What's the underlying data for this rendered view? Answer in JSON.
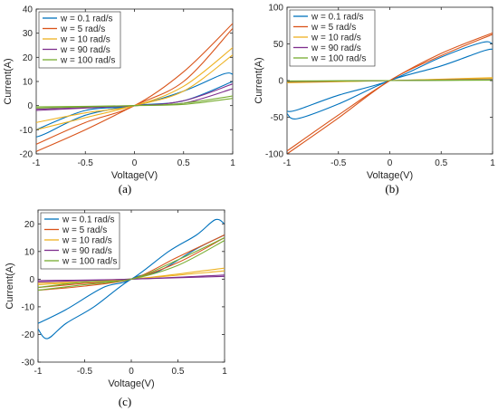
{
  "chart_data": [
    {
      "type": "line",
      "caption": "(a)",
      "xlabel": "Voltage(V)",
      "ylabel": "Current(A)",
      "xlim": [
        -1,
        1
      ],
      "ylim": [
        -20,
        40
      ],
      "xticks": [
        -1,
        -0.5,
        0,
        0.5,
        1
      ],
      "xtick_labels": [
        "-1",
        "-0.5",
        "0",
        "0.5",
        "1"
      ],
      "yticks": [
        -20,
        -10,
        0,
        10,
        20,
        30,
        40
      ],
      "ytick_labels": [
        "-20",
        "-10",
        "0",
        "10",
        "20",
        "30",
        "40"
      ],
      "grid": false,
      "legend_position": "top-left",
      "series": [
        {
          "name": "w = 0.1 rad/s",
          "color": "#0072BD",
          "upper": [
            [
              -1,
              -10
            ],
            [
              -0.5,
              -2
            ],
            [
              0,
              0
            ],
            [
              0.5,
              6
            ],
            [
              0.9,
              13
            ],
            [
              1,
              13
            ]
          ],
          "lower": [
            [
              -1,
              -13
            ],
            [
              -0.9,
              -11.5
            ],
            [
              -0.5,
              -4
            ],
            [
              0,
              0
            ],
            [
              0.5,
              2
            ],
            [
              1,
              10
            ]
          ]
        },
        {
          "name": "w = 5 rad/s",
          "color": "#D95319",
          "upper": [
            [
              -1,
              -16
            ],
            [
              -0.5,
              -7
            ],
            [
              0,
              0
            ],
            [
              0.5,
              14
            ],
            [
              1,
              34
            ]
          ],
          "lower": [
            [
              -1,
              -19
            ],
            [
              -0.5,
              -10
            ],
            [
              0,
              0
            ],
            [
              0.5,
              10
            ],
            [
              1,
              32
            ]
          ]
        },
        {
          "name": "w = 10 rad/s",
          "color": "#EDB120",
          "upper": [
            [
              -1,
              -7
            ],
            [
              -0.5,
              -3
            ],
            [
              0,
              0
            ],
            [
              0.5,
              8
            ],
            [
              1,
              24
            ]
          ],
          "lower": [
            [
              -1,
              -10
            ],
            [
              -0.5,
              -5
            ],
            [
              0,
              0
            ],
            [
              0.5,
              6
            ],
            [
              1,
              21
            ]
          ]
        },
        {
          "name": "w = 90 rad/s",
          "color": "#7E2F8E",
          "upper": [
            [
              -1,
              -1.5
            ],
            [
              0,
              0
            ],
            [
              0.5,
              2
            ],
            [
              1,
              9
            ]
          ],
          "lower": [
            [
              -1,
              -2
            ],
            [
              0,
              0
            ],
            [
              0.5,
              1
            ],
            [
              1,
              7
            ]
          ]
        },
        {
          "name": "w = 100 rad/s",
          "color": "#77AC30",
          "upper": [
            [
              -1,
              -0.5
            ],
            [
              0,
              0
            ],
            [
              0.5,
              1
            ],
            [
              1,
              4
            ]
          ],
          "lower": [
            [
              -1,
              -1
            ],
            [
              0,
              0
            ],
            [
              0.5,
              0.5
            ],
            [
              1,
              3
            ]
          ]
        }
      ]
    },
    {
      "type": "line",
      "caption": "(b)",
      "xlabel": "Voltage(V)",
      "ylabel": "Current(A)",
      "xlim": [
        -1,
        1
      ],
      "ylim": [
        -100,
        100
      ],
      "xticks": [
        -1,
        -0.5,
        0,
        0.5,
        1
      ],
      "xtick_labels": [
        "-1",
        "-0.5",
        "0",
        "0.5",
        "1"
      ],
      "yticks": [
        -100,
        -50,
        0,
        50,
        100
      ],
      "ytick_labels": [
        "-100",
        "-50",
        "0",
        "50",
        "100"
      ],
      "grid": false,
      "legend_position": "top-left",
      "series": [
        {
          "name": "w = 0.1 rad/s",
          "color": "#0072BD",
          "upper": [
            [
              -1,
              -42
            ],
            [
              -0.9,
              -40
            ],
            [
              -0.5,
              -20
            ],
            [
              0,
              0
            ],
            [
              0.5,
              32
            ],
            [
              0.9,
              52
            ],
            [
              1,
              50
            ]
          ],
          "lower": [
            [
              -1,
              -45
            ],
            [
              -0.9,
              -52
            ],
            [
              -0.5,
              -32
            ],
            [
              0,
              0
            ],
            [
              0.5,
              20
            ],
            [
              0.9,
              40
            ],
            [
              1,
              43
            ]
          ]
        },
        {
          "name": "w = 5 rad/s",
          "color": "#D95319",
          "upper": [
            [
              -1,
              -96
            ],
            [
              -0.5,
              -47
            ],
            [
              0,
              0
            ],
            [
              0.5,
              37
            ],
            [
              1,
              65
            ]
          ],
          "lower": [
            [
              -1,
              -100
            ],
            [
              -0.5,
              -51
            ],
            [
              0,
              0
            ],
            [
              0.5,
              34
            ],
            [
              1,
              63
            ]
          ]
        },
        {
          "name": "w = 10 rad/s",
          "color": "#EDB120",
          "upper": [
            [
              -1,
              -2
            ],
            [
              0,
              0
            ],
            [
              1,
              4
            ]
          ],
          "lower": [
            [
              -1,
              -3
            ],
            [
              0,
              0
            ],
            [
              1,
              3
            ]
          ]
        },
        {
          "name": "w = 90 rad/s",
          "color": "#7E2F8E",
          "upper": [
            [
              -1,
              -1
            ],
            [
              0,
              0
            ],
            [
              1,
              1.5
            ]
          ],
          "lower": [
            [
              -1,
              -1.5
            ],
            [
              0,
              0
            ],
            [
              1,
              1
            ]
          ]
        },
        {
          "name": "w = 100 rad/s",
          "color": "#77AC30",
          "upper": [
            [
              -1,
              -0.5
            ],
            [
              0,
              0
            ],
            [
              1,
              1
            ]
          ],
          "lower": [
            [
              -1,
              -1
            ],
            [
              0,
              0
            ],
            [
              1,
              0.5
            ]
          ]
        }
      ]
    },
    {
      "type": "line",
      "caption": "(c)",
      "xlabel": "Voltage(V)",
      "ylabel": "Current(A)",
      "xlim": [
        -1,
        1
      ],
      "ylim": [
        -30,
        25
      ],
      "xticks": [
        -1,
        -0.5,
        0,
        0.5,
        1
      ],
      "xtick_labels": [
        "-1",
        "-0.5",
        "0",
        "0.5",
        "1"
      ],
      "yticks": [
        -30,
        -20,
        -10,
        0,
        10,
        20
      ],
      "ytick_labels": [
        "-30",
        "-20",
        "-10",
        "0",
        "10",
        "20"
      ],
      "grid": false,
      "legend_position": "top-left",
      "series": [
        {
          "name": "w = 0.1 rad/s",
          "color": "#0072BD",
          "upper": [
            [
              -1,
              -16
            ],
            [
              -0.7,
              -11
            ],
            [
              -0.3,
              -3
            ],
            [
              0,
              0
            ],
            [
              0.4,
              10
            ],
            [
              0.7,
              16
            ],
            [
              0.9,
              21.5
            ],
            [
              1,
              20
            ]
          ],
          "lower": [
            [
              -1,
              -18
            ],
            [
              -0.9,
              -21.5
            ],
            [
              -0.7,
              -16
            ],
            [
              -0.4,
              -10
            ],
            [
              0,
              0
            ],
            [
              0.3,
              3
            ],
            [
              0.7,
              11
            ],
            [
              1,
              16
            ]
          ]
        },
        {
          "name": "w = 5 rad/s",
          "color": "#D95319",
          "upper": [
            [
              -1,
              -3
            ],
            [
              -0.5,
              -1.5
            ],
            [
              0,
              0
            ],
            [
              0.5,
              8
            ],
            [
              1,
              16
            ]
          ],
          "lower": [
            [
              -1,
              -4
            ],
            [
              -0.5,
              -2.5
            ],
            [
              0,
              0
            ],
            [
              0.5,
              6
            ],
            [
              1,
              15
            ]
          ]
        },
        {
          "name": "w = 10 rad/s",
          "color": "#EDB120",
          "upper": [
            [
              -1,
              -1.5
            ],
            [
              0,
              0
            ],
            [
              1,
              4
            ]
          ],
          "lower": [
            [
              -1,
              -2
            ],
            [
              0,
              0
            ],
            [
              1,
              3
            ]
          ]
        },
        {
          "name": "w = 90 rad/s",
          "color": "#7E2F8E",
          "upper": [
            [
              -1,
              -0.5
            ],
            [
              0,
              0
            ],
            [
              1,
              1.5
            ]
          ],
          "lower": [
            [
              -1,
              -1
            ],
            [
              0,
              0
            ],
            [
              1,
              1
            ]
          ]
        },
        {
          "name": "w = 100 rad/s",
          "color": "#77AC30",
          "upper": [
            [
              -1,
              -3
            ],
            [
              -0.5,
              -1
            ],
            [
              0,
              0
            ],
            [
              0.5,
              7
            ],
            [
              1,
              15
            ]
          ],
          "lower": [
            [
              -1,
              -4
            ],
            [
              -0.5,
              -2
            ],
            [
              0,
              0
            ],
            [
              0.5,
              5
            ],
            [
              1,
              14
            ]
          ]
        }
      ]
    }
  ]
}
